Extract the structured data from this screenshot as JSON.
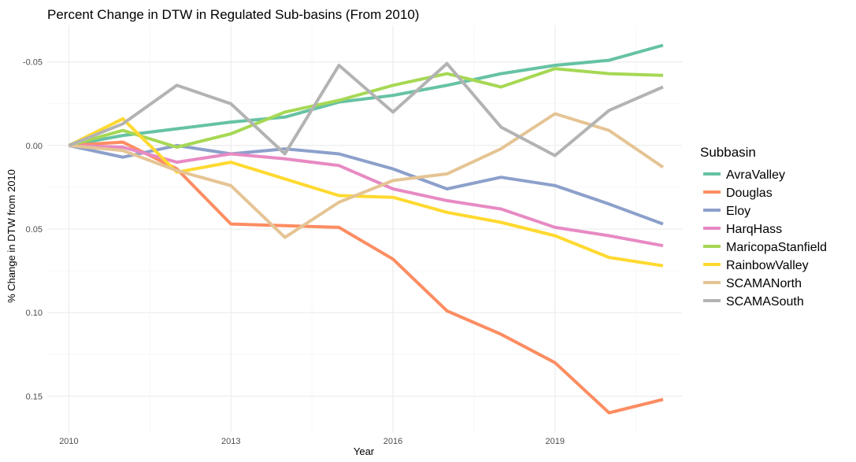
{
  "chart_data": {
    "type": "line",
    "title": "Percent Change in DTW in Regulated Sub-basins (From 2010)",
    "xlabel": "Year",
    "ylabel": "% Change in DTW from 2010",
    "x": [
      2010,
      2011,
      2012,
      2013,
      2014,
      2015,
      2016,
      2017,
      2018,
      2019,
      2020,
      2021
    ],
    "xlim": [
      2009.6,
      2021.35
    ],
    "ylim": [
      0.172,
      -0.072
    ],
    "y_reversed": true,
    "x_ticks": [
      {
        "value": 2010,
        "label": "2010"
      },
      {
        "value": 2013,
        "label": "2013"
      },
      {
        "value": 2016,
        "label": "2016"
      },
      {
        "value": 2019,
        "label": "2019"
      }
    ],
    "y_ticks": [
      {
        "value": -0.05,
        "label": "-0.05"
      },
      {
        "value": 0.0,
        "label": "0.00"
      },
      {
        "value": 0.05,
        "label": "0.05"
      },
      {
        "value": 0.1,
        "label": "0.10"
      },
      {
        "value": 0.15,
        "label": "0.15"
      }
    ],
    "grid": true,
    "legend": {
      "title": "Subbasin",
      "position": "right"
    },
    "series": [
      {
        "name": "AvraValley",
        "color": "#66C2A5",
        "values": [
          0.0,
          -0.006,
          -0.01,
          -0.014,
          -0.017,
          -0.026,
          -0.03,
          -0.036,
          -0.043,
          -0.048,
          -0.051,
          -0.06
        ]
      },
      {
        "name": "Douglas",
        "color": "#FC8D62",
        "values": [
          0.0,
          -0.002,
          0.014,
          0.047,
          0.048,
          0.049,
          0.068,
          0.099,
          0.113,
          0.13,
          0.16,
          0.152
        ]
      },
      {
        "name": "Eloy",
        "color": "#8DA0CB",
        "values": [
          0.0,
          0.007,
          0.0,
          0.005,
          0.002,
          0.005,
          0.014,
          0.026,
          0.019,
          0.024,
          0.035,
          0.047
        ]
      },
      {
        "name": "HarqHass",
        "color": "#E78AC3",
        "values": [
          0.0,
          0.001,
          0.01,
          0.005,
          0.008,
          0.012,
          0.026,
          0.033,
          0.038,
          0.049,
          0.054,
          0.06
        ]
      },
      {
        "name": "MaricopaStanfield",
        "color": "#A6D854",
        "values": [
          0.0,
          -0.009,
          0.001,
          -0.007,
          -0.02,
          -0.027,
          -0.036,
          -0.043,
          -0.035,
          -0.046,
          -0.043,
          -0.042
        ]
      },
      {
        "name": "RainbowValley",
        "color": "#FFD92F",
        "values": [
          0.0,
          -0.016,
          0.016,
          0.01,
          0.02,
          0.03,
          0.031,
          0.04,
          0.046,
          0.054,
          0.067,
          0.072
        ]
      },
      {
        "name": "SCAMANorth",
        "color": "#E5C494",
        "values": [
          0.0,
          0.003,
          0.015,
          0.024,
          0.055,
          0.034,
          0.021,
          0.017,
          0.002,
          -0.019,
          -0.009,
          0.013
        ]
      },
      {
        "name": "SCAMASouth",
        "color": "#B3B3B3",
        "values": [
          0.0,
          -0.013,
          -0.036,
          -0.025,
          0.005,
          -0.048,
          -0.02,
          -0.049,
          -0.011,
          0.006,
          -0.021,
          -0.035
        ]
      }
    ]
  }
}
